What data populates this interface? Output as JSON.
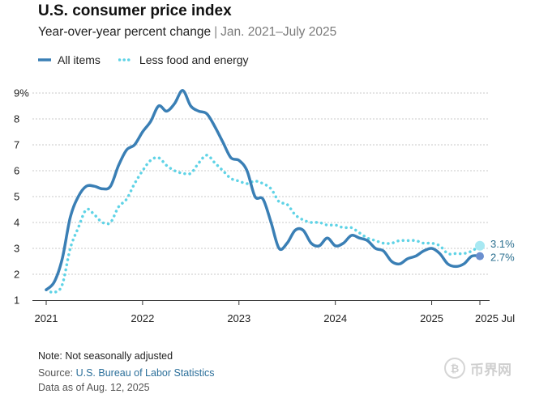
{
  "header": {
    "title": "U.S. consumer price index",
    "subtitle_main": "Year-over-year percent change",
    "subtitle_sep": "|",
    "subtitle_range": "Jan. 2021–July 2025"
  },
  "legend": {
    "all_items": "All items",
    "core": "Less food and energy"
  },
  "colors": {
    "all_items": "#3a7fb5",
    "core": "#5fd3e6",
    "grid": "#c9c9c9",
    "axis": "#333333",
    "end_label": "#2b6f8f"
  },
  "footer": {
    "note": "Note: Not seasonally adjusted",
    "source_prefix": "Source:",
    "source_name": "U.S. Bureau of Labor Statistics",
    "as_of": "Data as of Aug. 12, 2025"
  },
  "watermark": {
    "glyph": "₿",
    "text": "币界网"
  },
  "chart_data": {
    "type": "line",
    "title": "U.S. consumer price index",
    "subtitle": "Year-over-year percent change | Jan. 2021–July 2025",
    "xlabel": "",
    "ylabel": "",
    "ylim": [
      1,
      9
    ],
    "y_ticks": [
      "1",
      "2",
      "3",
      "4",
      "5",
      "6",
      "7",
      "8",
      "9%"
    ],
    "x_ticks": [
      "2021",
      "2022",
      "2023",
      "2024",
      "2025",
      "2025 Jul"
    ],
    "grid": true,
    "legend_position": "top-left",
    "start": "2021-01",
    "end": "2025-07",
    "series": [
      {
        "name": "All items",
        "style": "solid",
        "end_label": "2.7%",
        "values": [
          1.4,
          1.7,
          2.6,
          4.2,
          5.0,
          5.4,
          5.4,
          5.3,
          5.4,
          6.2,
          6.8,
          7.0,
          7.5,
          7.9,
          8.5,
          8.3,
          8.6,
          9.1,
          8.5,
          8.3,
          8.2,
          7.7,
          7.1,
          6.5,
          6.4,
          6.0,
          5.0,
          4.9,
          4.0,
          3.0,
          3.2,
          3.7,
          3.7,
          3.2,
          3.1,
          3.4,
          3.1,
          3.2,
          3.5,
          3.4,
          3.3,
          3.0,
          2.9,
          2.5,
          2.4,
          2.6,
          2.7,
          2.9,
          3.0,
          2.8,
          2.4,
          2.3,
          2.4,
          2.7,
          2.7
        ]
      },
      {
        "name": "Less food and energy",
        "style": "dotted",
        "end_label": "3.1%",
        "values": [
          1.4,
          1.3,
          1.6,
          3.0,
          3.8,
          4.5,
          4.3,
          4.0,
          4.0,
          4.6,
          4.9,
          5.5,
          6.0,
          6.4,
          6.5,
          6.2,
          6.0,
          5.9,
          5.9,
          6.3,
          6.6,
          6.3,
          6.0,
          5.7,
          5.6,
          5.5,
          5.6,
          5.5,
          5.3,
          4.8,
          4.7,
          4.3,
          4.1,
          4.0,
          4.0,
          3.9,
          3.9,
          3.8,
          3.8,
          3.6,
          3.4,
          3.3,
          3.2,
          3.2,
          3.3,
          3.3,
          3.3,
          3.2,
          3.2,
          3.1,
          2.8,
          2.8,
          2.8,
          2.9,
          3.1
        ]
      }
    ]
  }
}
